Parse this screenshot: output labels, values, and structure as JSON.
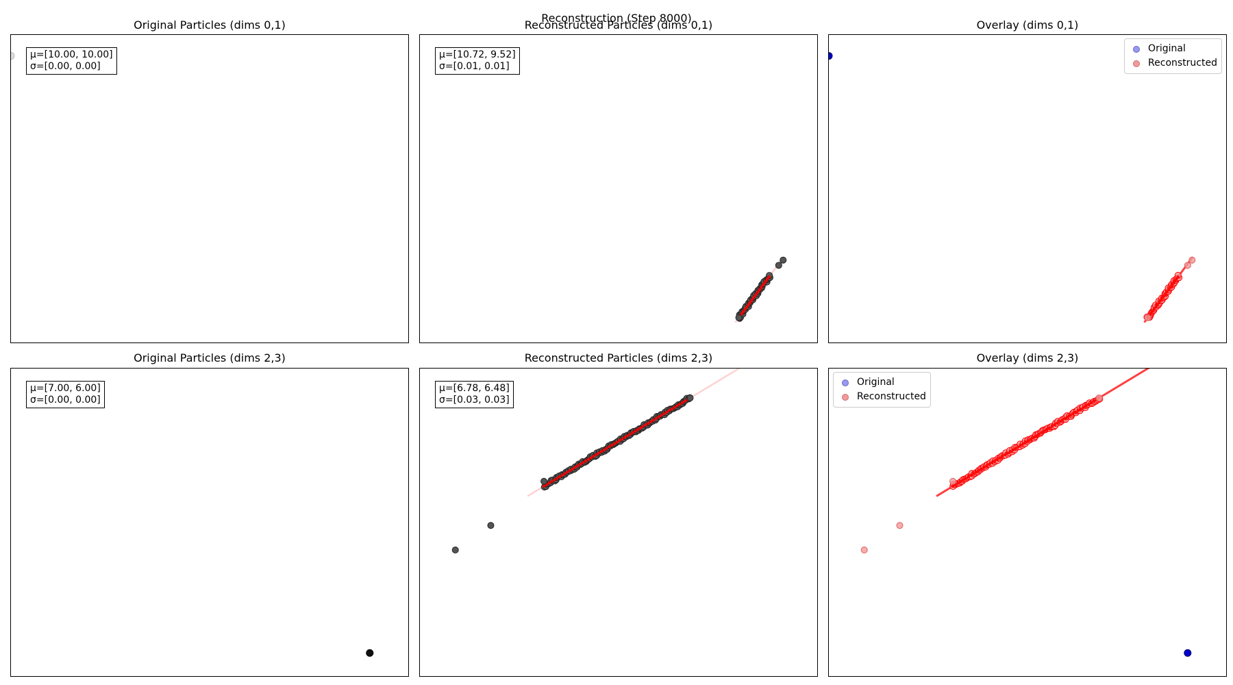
{
  "figure": {
    "suptitle": "Reconstruction (Step 8000)"
  },
  "colors": {
    "original": "#0000cc",
    "original_legend": "#9999ee",
    "reconstructed": "#ff0000",
    "reconstructed_legend": "#f19a9a",
    "particle_gray": "#555555"
  },
  "chart_data": [
    {
      "type": "scatter",
      "title": "Original Particles (dims 0,1)",
      "stats": {
        "mu": "μ=[10.00, 10.00]",
        "sigma": "σ=[0.00, 0.00]"
      },
      "xlim": [
        10.0,
        10.9
      ],
      "ylim": [
        9.45,
        10.04
      ],
      "series": [
        {
          "role": "original",
          "x": [
            10.0
          ],
          "y": [
            10.0
          ]
        }
      ]
    },
    {
      "type": "scatter",
      "title": "Reconstructed Particles (dims 0,1)",
      "stats": {
        "mu": "μ=[10.72, 9.52]",
        "sigma": "σ=[0.01, 0.01]"
      },
      "xlim": [
        10.0,
        10.9
      ],
      "ylim": [
        9.45,
        10.04
      ],
      "band": {
        "x": [
          10.72,
          10.79
        ],
        "y": [
          9.5,
          9.58
        ]
      },
      "outliers": {
        "x": [
          10.72,
          10.81,
          10.82
        ],
        "y": [
          9.5,
          9.6,
          9.61
        ]
      }
    },
    {
      "type": "scatter",
      "title": "Overlay (dims 0,1)",
      "legend": {
        "original": "Original",
        "reconstructed": "Reconstructed"
      },
      "xlim": [
        10.0,
        10.9
      ],
      "ylim": [
        9.45,
        10.04
      ],
      "original": {
        "x": [
          10.0
        ],
        "y": [
          10.0
        ]
      },
      "band": {
        "x": [
          10.72,
          10.79
        ],
        "y": [
          9.5,
          9.58
        ]
      },
      "outliers": {
        "x": [
          10.72,
          10.81,
          10.82
        ],
        "y": [
          9.5,
          9.6,
          9.61
        ]
      }
    },
    {
      "type": "scatter",
      "title": "Original Particles (dims 2,3)",
      "stats": {
        "mu": "μ=[7.00, 6.00]",
        "sigma": "σ=[0.00, 0.00]"
      },
      "xlim": [
        6.19,
        7.09
      ],
      "ylim": [
        5.95,
        6.58
      ],
      "series": [
        {
          "role": "original",
          "x": [
            7.0
          ],
          "y": [
            6.0
          ]
        }
      ]
    },
    {
      "type": "scatter",
      "title": "Reconstructed Particles (dims 2,3)",
      "stats": {
        "mu": "μ=[6.78, 6.48]",
        "sigma": "σ=[0.03, 0.03]"
      },
      "xlim": [
        6.19,
        7.09
      ],
      "ylim": [
        5.95,
        6.58
      ],
      "band": {
        "x": [
          6.47,
          6.8
        ],
        "y": [
          6.34,
          6.52
        ]
      },
      "outliers": {
        "x": [
          6.27,
          6.35,
          6.47,
          6.8
        ],
        "y": [
          6.21,
          6.26,
          6.35,
          6.52
        ]
      }
    },
    {
      "type": "scatter",
      "title": "Overlay (dims 2,3)",
      "legend": {
        "original": "Original",
        "reconstructed": "Reconstructed"
      },
      "xlim": [
        6.19,
        7.09
      ],
      "ylim": [
        5.95,
        6.58
      ],
      "original": {
        "x": [
          7.0
        ],
        "y": [
          6.0
        ]
      },
      "band": {
        "x": [
          6.47,
          6.8
        ],
        "y": [
          6.34,
          6.52
        ]
      },
      "outliers": {
        "x": [
          6.27,
          6.35,
          6.47,
          6.8
        ],
        "y": [
          6.21,
          6.26,
          6.35,
          6.52
        ]
      }
    }
  ]
}
